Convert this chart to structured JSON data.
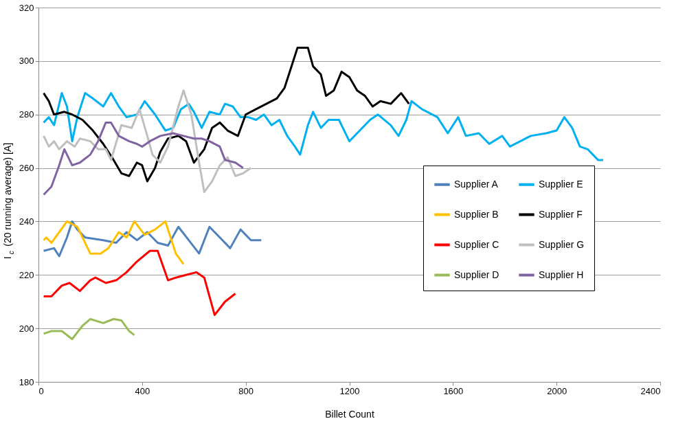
{
  "chart_data": {
    "type": "line",
    "xlabel": "Billet Count",
    "ylabel": "I$_{c}$ (20 running average) [A]",
    "xlim": [
      0,
      2400
    ],
    "xticks": [
      0,
      400,
      800,
      {
        "value": 1200,
        "label": "1200"
      },
      {
        "value": 1600,
        "label": "1600"
      },
      {
        "value": 2000,
        "label": "2000"
      },
      {
        "value": 2400,
        "label": "2400"
      }
    ],
    "ylim": [
      180,
      320
    ],
    "yticks": [
      180,
      200,
      220,
      240,
      260,
      280,
      300,
      320
    ],
    "grid": "y",
    "legend": "right",
    "marker": "none",
    "line_style": "solid",
    "series": [
      {
        "name": "Supplier A",
        "color": "#4f81bd",
        "x": [
          20,
          60,
          80,
          110,
          130,
          150,
          180,
          250,
          300,
          340,
          380,
          420,
          460,
          500,
          540,
          580,
          620,
          660,
          700,
          740,
          780,
          820,
          860
        ],
        "values": [
          229,
          230,
          227,
          234,
          240,
          237,
          234,
          233,
          232,
          236,
          233,
          236,
          232,
          231,
          238,
          233,
          228,
          238,
          234,
          230,
          237,
          233,
          233
        ]
      },
      {
        "name": "Supplier B",
        "color": "#ffc000",
        "x": [
          20,
          30,
          50,
          80,
          110,
          150,
          200,
          240,
          270,
          310,
          340,
          370,
          410,
          450,
          490,
          530,
          560
        ],
        "values": [
          233,
          234,
          232,
          236,
          240,
          238,
          228,
          228,
          230,
          236,
          234,
          240,
          235,
          237,
          240,
          228,
          224
        ]
      },
      {
        "name": "Supplier C",
        "color": "#ff0000",
        "x": [
          20,
          50,
          90,
          120,
          160,
          200,
          220,
          260,
          300,
          340,
          380,
          430,
          460,
          500,
          530,
          570,
          610,
          640,
          680,
          720,
          760
        ],
        "values": [
          212,
          212,
          216,
          217,
          214,
          218,
          219,
          217,
          218,
          221,
          225,
          229,
          229,
          218,
          219,
          220,
          221,
          219,
          205,
          210,
          213
        ]
      },
      {
        "name": "Supplier D",
        "color": "#9bbb59",
        "x": [
          20,
          50,
          90,
          130,
          170,
          200,
          250,
          290,
          320,
          350,
          370
        ],
        "values": [
          198,
          199,
          199,
          196,
          201,
          203.5,
          202,
          203.5,
          203,
          199,
          197.5
        ]
      },
      {
        "name": "Supplier E",
        "color": "#00b0f0",
        "x": [
          20,
          40,
          60,
          90,
          110,
          130,
          150,
          180,
          210,
          250,
          280,
          310,
          340,
          380,
          410,
          450,
          490,
          520,
          550,
          580,
          600,
          630,
          660,
          700,
          720,
          750,
          780,
          810,
          840,
          870,
          900,
          930,
          960,
          990,
          1010,
          1040,
          1060,
          1090,
          1120,
          1160,
          1200,
          1230,
          1280,
          1310,
          1360,
          1390,
          1420,
          1440,
          1480,
          1540,
          1580,
          1620,
          1650,
          1700,
          1740,
          1790,
          1820,
          1860,
          1900,
          1960,
          2000,
          2030,
          2060,
          2090,
          2120,
          2160,
          2180
        ],
        "values": [
          277,
          279,
          276,
          288,
          283,
          270,
          279,
          288,
          286,
          283,
          288,
          283,
          279,
          280,
          285,
          280,
          274,
          275,
          282,
          284,
          281,
          275,
          281,
          280,
          284,
          283,
          279,
          279,
          278,
          280,
          276,
          278,
          272,
          268,
          265,
          276,
          281,
          275,
          278,
          278,
          270,
          273,
          278,
          280,
          276,
          272,
          278,
          285,
          282,
          279,
          273,
          279,
          272,
          273,
          269,
          272,
          268,
          270,
          272,
          273,
          274,
          279,
          275,
          268,
          267,
          263,
          263
        ]
      },
      {
        "name": "Supplier F",
        "color": "#000000",
        "x": [
          20,
          40,
          60,
          100,
          130,
          170,
          210,
          250,
          290,
          320,
          350,
          380,
          400,
          420,
          450,
          470,
          500,
          540,
          570,
          600,
          640,
          670,
          700,
          730,
          770,
          800,
          840,
          880,
          920,
          950,
          980,
          1000,
          1040,
          1060,
          1090,
          1110,
          1140,
          1170,
          1200,
          1230,
          1260,
          1290,
          1320,
          1360,
          1400,
          1430
        ],
        "values": [
          288,
          285,
          280,
          281,
          280,
          278,
          274,
          269,
          263,
          258,
          257,
          262,
          261,
          255,
          260,
          266,
          271,
          272,
          270,
          262,
          267,
          275,
          277,
          274,
          272,
          280,
          282,
          284,
          286,
          290,
          299,
          305,
          305,
          298,
          295,
          287,
          289,
          296,
          294,
          289,
          287,
          283,
          285,
          284,
          288,
          284
        ]
      },
      {
        "name": "Supplier G",
        "color": "#bfbfbf",
        "x": [
          20,
          40,
          60,
          80,
          110,
          140,
          160,
          200,
          230,
          260,
          280,
          320,
          360,
          390,
          420,
          440,
          470,
          500,
          540,
          560,
          590,
          620,
          640,
          670,
          700,
          730,
          760,
          790,
          820
        ],
        "values": [
          272,
          268,
          270,
          267,
          270,
          268,
          271,
          270,
          267,
          267,
          263,
          276,
          275,
          282,
          272,
          265,
          262,
          268,
          283,
          289,
          280,
          262,
          251,
          255,
          261,
          264,
          257,
          258,
          260
        ]
      },
      {
        "name": "Supplier H",
        "color": "#8064a2",
        "x": [
          20,
          50,
          80,
          100,
          130,
          160,
          200,
          230,
          260,
          280,
          310,
          350,
          380,
          400,
          430,
          470,
          520,
          560,
          600,
          630,
          660,
          700,
          720,
          760,
          790
        ],
        "values": [
          250,
          253,
          261,
          267,
          261,
          262,
          265,
          270,
          277,
          277,
          272,
          270,
          269,
          268,
          270,
          272,
          273,
          272,
          271,
          271,
          270,
          268,
          263,
          262,
          260
        ]
      }
    ]
  }
}
